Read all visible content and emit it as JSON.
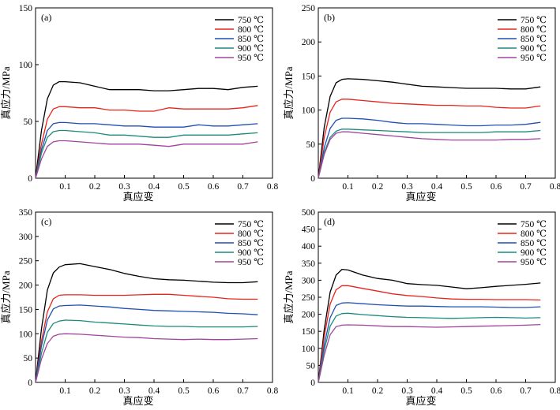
{
  "chart_data": [
    {
      "type": "line",
      "annotation": "(a)",
      "xlabel": "真应变",
      "ylabel": "真应力/MPa",
      "xlim": [
        0,
        0.8
      ],
      "ylim": [
        0,
        150
      ],
      "xticks": [
        "0.1",
        "0.2",
        "0.3",
        "0.4",
        "0.5",
        "0.6",
        "0.7",
        "0.8"
      ],
      "yticks": [
        "0",
        "50",
        "100",
        "150"
      ],
      "legend_position": "top-right",
      "series": [
        {
          "name": "750 ℃",
          "color": "#000000",
          "x": [
            0,
            0.02,
            0.04,
            0.06,
            0.08,
            0.1,
            0.15,
            0.2,
            0.25,
            0.3,
            0.35,
            0.4,
            0.45,
            0.5,
            0.55,
            0.6,
            0.65,
            0.7,
            0.75
          ],
          "y": [
            0,
            42,
            70,
            82,
            85,
            85,
            84,
            81,
            78,
            78,
            78,
            77,
            77,
            78,
            79,
            79,
            78,
            80,
            81
          ]
        },
        {
          "name": "800 ℃",
          "color": "#e8231c",
          "x": [
            0,
            0.02,
            0.04,
            0.06,
            0.08,
            0.1,
            0.15,
            0.2,
            0.25,
            0.3,
            0.35,
            0.4,
            0.45,
            0.5,
            0.55,
            0.6,
            0.65,
            0.7,
            0.75
          ],
          "y": [
            0,
            30,
            52,
            61,
            63,
            63,
            62,
            62,
            60,
            60,
            59,
            59,
            62,
            61,
            61,
            61,
            61,
            62,
            64
          ]
        },
        {
          "name": "850 ℃",
          "color": "#1f4fb4",
          "x": [
            0,
            0.02,
            0.04,
            0.06,
            0.08,
            0.1,
            0.15,
            0.2,
            0.25,
            0.3,
            0.35,
            0.4,
            0.45,
            0.5,
            0.55,
            0.6,
            0.65,
            0.7,
            0.75
          ],
          "y": [
            0,
            25,
            42,
            48,
            49,
            49,
            48,
            48,
            47,
            46,
            46,
            45,
            45,
            45,
            47,
            46,
            46,
            47,
            48
          ]
        },
        {
          "name": "900 ℃",
          "color": "#1a8a7a",
          "x": [
            0,
            0.02,
            0.04,
            0.06,
            0.08,
            0.1,
            0.15,
            0.2,
            0.25,
            0.3,
            0.35,
            0.4,
            0.45,
            0.5,
            0.55,
            0.6,
            0.65,
            0.7,
            0.75
          ],
          "y": [
            0,
            22,
            36,
            41,
            42,
            42,
            41,
            40,
            38,
            38,
            37,
            36,
            36,
            38,
            38,
            38,
            38,
            39,
            40
          ]
        },
        {
          "name": "950 ℃",
          "color": "#a0449e",
          "x": [
            0,
            0.02,
            0.04,
            0.06,
            0.08,
            0.1,
            0.15,
            0.2,
            0.25,
            0.3,
            0.35,
            0.4,
            0.45,
            0.5,
            0.55,
            0.6,
            0.65,
            0.7,
            0.75
          ],
          "y": [
            0,
            17,
            28,
            32,
            33,
            33,
            32,
            31,
            30,
            30,
            30,
            29,
            28,
            30,
            30,
            30,
            30,
            30,
            32
          ]
        }
      ]
    },
    {
      "type": "line",
      "annotation": "(b)",
      "xlabel": "真应变",
      "ylabel": "真应力/MPa",
      "xlim": [
        0,
        0.8
      ],
      "ylim": [
        0,
        250
      ],
      "xticks": [
        "0.1",
        "0.2",
        "0.3",
        "0.4",
        "0.5",
        "0.6",
        "0.7",
        "0.8"
      ],
      "yticks": [
        "0",
        "50",
        "100",
        "150",
        "200",
        "250"
      ],
      "legend_position": "top-right",
      "series": [
        {
          "name": "750 ℃",
          "color": "#000000",
          "x": [
            0,
            0.02,
            0.04,
            0.06,
            0.08,
            0.1,
            0.15,
            0.2,
            0.25,
            0.3,
            0.35,
            0.4,
            0.45,
            0.5,
            0.55,
            0.6,
            0.65,
            0.7,
            0.75
          ],
          "y": [
            0,
            75,
            120,
            140,
            145,
            146,
            145,
            143,
            141,
            138,
            135,
            134,
            133,
            132,
            132,
            132,
            131,
            131,
            134
          ]
        },
        {
          "name": "800 ℃",
          "color": "#e8231c",
          "x": [
            0,
            0.02,
            0.04,
            0.06,
            0.08,
            0.1,
            0.15,
            0.2,
            0.25,
            0.3,
            0.35,
            0.4,
            0.45,
            0.5,
            0.55,
            0.6,
            0.65,
            0.7,
            0.75
          ],
          "y": [
            0,
            60,
            97,
            112,
            116,
            116,
            114,
            112,
            110,
            109,
            108,
            107,
            107,
            106,
            106,
            104,
            103,
            103,
            106
          ]
        },
        {
          "name": "850 ℃",
          "color": "#1f4fb4",
          "x": [
            0,
            0.02,
            0.04,
            0.06,
            0.08,
            0.1,
            0.15,
            0.2,
            0.25,
            0.3,
            0.35,
            0.4,
            0.45,
            0.5,
            0.55,
            0.6,
            0.65,
            0.7,
            0.75
          ],
          "y": [
            0,
            45,
            73,
            85,
            88,
            88,
            87,
            85,
            82,
            80,
            80,
            79,
            78,
            77,
            77,
            78,
            78,
            79,
            82
          ]
        },
        {
          "name": "900 ℃",
          "color": "#1a8a7a",
          "x": [
            0,
            0.02,
            0.04,
            0.06,
            0.08,
            0.1,
            0.15,
            0.2,
            0.25,
            0.3,
            0.35,
            0.4,
            0.45,
            0.5,
            0.55,
            0.6,
            0.65,
            0.7,
            0.75
          ],
          "y": [
            0,
            38,
            60,
            69,
            72,
            72,
            71,
            70,
            69,
            68,
            67,
            67,
            67,
            67,
            67,
            68,
            68,
            68,
            70
          ]
        },
        {
          "name": "950 ℃",
          "color": "#a0449e",
          "x": [
            0,
            0.02,
            0.04,
            0.06,
            0.08,
            0.1,
            0.15,
            0.2,
            0.25,
            0.3,
            0.35,
            0.4,
            0.45,
            0.5,
            0.55,
            0.6,
            0.65,
            0.7,
            0.75
          ],
          "y": [
            0,
            35,
            57,
            66,
            68,
            68,
            66,
            64,
            62,
            60,
            58,
            57,
            56,
            56,
            56,
            56,
            57,
            57,
            58
          ]
        }
      ]
    },
    {
      "type": "line",
      "annotation": "(c)",
      "xlabel": "真应变",
      "ylabel": "真应力/MPa",
      "xlim": [
        0,
        0.8
      ],
      "ylim": [
        0,
        350
      ],
      "xticks": [
        "0.1",
        "0.2",
        "0.3",
        "0.4",
        "0.5",
        "0.6",
        "0.7",
        "0.8"
      ],
      "yticks": [
        "0",
        "50",
        "100",
        "150",
        "200",
        "250",
        "300",
        "350"
      ],
      "legend_position": "top-right",
      "series": [
        {
          "name": "750 ℃",
          "color": "#000000",
          "x": [
            0,
            0.02,
            0.04,
            0.06,
            0.08,
            0.1,
            0.15,
            0.2,
            0.25,
            0.3,
            0.35,
            0.4,
            0.45,
            0.5,
            0.55,
            0.6,
            0.65,
            0.7,
            0.75
          ],
          "y": [
            0,
            110,
            190,
            225,
            237,
            242,
            244,
            238,
            232,
            224,
            218,
            213,
            211,
            210,
            208,
            206,
            205,
            205,
            207
          ]
        },
        {
          "name": "800 ℃",
          "color": "#e8231c",
          "x": [
            0,
            0.02,
            0.04,
            0.06,
            0.08,
            0.1,
            0.15,
            0.2,
            0.25,
            0.3,
            0.35,
            0.4,
            0.45,
            0.5,
            0.55,
            0.6,
            0.65,
            0.7,
            0.75
          ],
          "y": [
            0,
            85,
            145,
            172,
            179,
            180,
            180,
            179,
            179,
            179,
            180,
            181,
            181,
            179,
            177,
            175,
            172,
            171,
            171
          ]
        },
        {
          "name": "850 ℃",
          "color": "#1f4fb4",
          "x": [
            0,
            0.02,
            0.04,
            0.06,
            0.08,
            0.1,
            0.15,
            0.2,
            0.25,
            0.3,
            0.35,
            0.4,
            0.45,
            0.5,
            0.55,
            0.6,
            0.65,
            0.7,
            0.75
          ],
          "y": [
            0,
            75,
            128,
            151,
            157,
            158,
            159,
            157,
            155,
            152,
            150,
            148,
            147,
            146,
            145,
            144,
            142,
            141,
            139
          ]
        },
        {
          "name": "900 ℃",
          "color": "#1a8a7a",
          "x": [
            0,
            0.02,
            0.04,
            0.06,
            0.08,
            0.1,
            0.15,
            0.2,
            0.25,
            0.3,
            0.35,
            0.4,
            0.45,
            0.5,
            0.55,
            0.6,
            0.65,
            0.7,
            0.75
          ],
          "y": [
            0,
            60,
            103,
            121,
            126,
            128,
            127,
            124,
            122,
            120,
            118,
            116,
            115,
            115,
            114,
            114,
            114,
            114,
            115
          ]
        },
        {
          "name": "950 ℃",
          "color": "#a0449e",
          "x": [
            0,
            0.02,
            0.04,
            0.06,
            0.08,
            0.1,
            0.15,
            0.2,
            0.25,
            0.3,
            0.35,
            0.4,
            0.45,
            0.5,
            0.55,
            0.6,
            0.65,
            0.7,
            0.75
          ],
          "y": [
            0,
            48,
            80,
            95,
            99,
            100,
            99,
            97,
            95,
            93,
            92,
            90,
            89,
            88,
            89,
            88,
            88,
            89,
            90
          ]
        }
      ]
    },
    {
      "type": "line",
      "annotation": "(d)",
      "xlabel": "真应变",
      "ylabel": "真应力/MPa",
      "xlim": [
        0,
        0.8
      ],
      "ylim": [
        0,
        500
      ],
      "xticks": [
        "0.1",
        "0.2",
        "0.3",
        "0.4",
        "0.5",
        "0.6",
        "0.7",
        "0.8"
      ],
      "yticks": [
        "0",
        "50",
        "100",
        "150",
        "200",
        "250",
        "300",
        "350",
        "400",
        "450",
        "500"
      ],
      "legend_position": "top-right",
      "series": [
        {
          "name": "750 ℃",
          "color": "#000000",
          "x": [
            0,
            0.02,
            0.04,
            0.06,
            0.08,
            0.1,
            0.15,
            0.2,
            0.25,
            0.3,
            0.35,
            0.4,
            0.45,
            0.5,
            0.55,
            0.6,
            0.65,
            0.7,
            0.75
          ],
          "y": [
            0,
            155,
            265,
            315,
            332,
            330,
            315,
            305,
            300,
            290,
            287,
            285,
            280,
            275,
            278,
            282,
            285,
            288,
            292
          ]
        },
        {
          "name": "800 ℃",
          "color": "#e8231c",
          "x": [
            0,
            0.02,
            0.04,
            0.06,
            0.08,
            0.1,
            0.15,
            0.2,
            0.25,
            0.3,
            0.35,
            0.4,
            0.45,
            0.5,
            0.55,
            0.6,
            0.65,
            0.7,
            0.75
          ],
          "y": [
            0,
            135,
            230,
            272,
            284,
            284,
            276,
            268,
            260,
            255,
            252,
            248,
            245,
            244,
            244,
            243,
            243,
            243,
            242
          ]
        },
        {
          "name": "850 ℃",
          "color": "#1f4fb4",
          "x": [
            0,
            0.02,
            0.04,
            0.06,
            0.08,
            0.1,
            0.15,
            0.2,
            0.25,
            0.3,
            0.35,
            0.4,
            0.45,
            0.5,
            0.55,
            0.6,
            0.65,
            0.7,
            0.75
          ],
          "y": [
            0,
            110,
            190,
            226,
            233,
            234,
            231,
            228,
            226,
            224,
            224,
            223,
            222,
            222,
            222,
            221,
            220,
            220,
            222
          ]
        },
        {
          "name": "900 ℃",
          "color": "#1a8a7a",
          "x": [
            0,
            0.02,
            0.04,
            0.06,
            0.08,
            0.1,
            0.15,
            0.2,
            0.25,
            0.3,
            0.35,
            0.4,
            0.45,
            0.5,
            0.55,
            0.6,
            0.65,
            0.7,
            0.75
          ],
          "y": [
            0,
            95,
            165,
            195,
            202,
            203,
            199,
            196,
            193,
            191,
            190,
            189,
            188,
            189,
            190,
            191,
            190,
            189,
            190
          ]
        },
        {
          "name": "950 ℃",
          "color": "#a0449e",
          "x": [
            0,
            0.02,
            0.04,
            0.06,
            0.08,
            0.1,
            0.15,
            0.2,
            0.25,
            0.3,
            0.35,
            0.4,
            0.45,
            0.5,
            0.55,
            0.6,
            0.65,
            0.7,
            0.75
          ],
          "y": [
            0,
            80,
            140,
            164,
            168,
            169,
            168,
            166,
            164,
            164,
            163,
            162,
            163,
            164,
            165,
            166,
            167,
            168,
            170
          ]
        }
      ]
    }
  ]
}
